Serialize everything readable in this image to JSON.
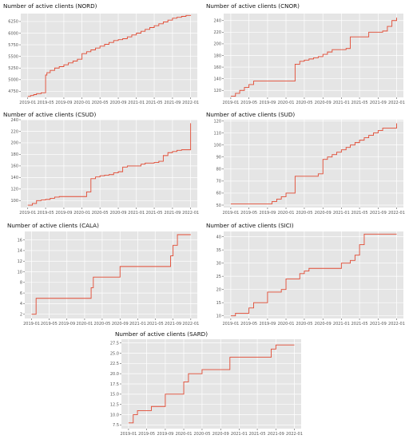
{
  "chart_data": [
    {
      "type": "line",
      "title": "Number of active clients (NORD)",
      "x_ticks": [
        "2019-01",
        "2019-05",
        "2019-09",
        "2020-01",
        "2020-05",
        "2020-09",
        "2021-01",
        "2021-05",
        "2021-09",
        "2022-01"
      ],
      "xlim": [
        "2018-11-15",
        "2022-02-15"
      ],
      "y_ticks": [
        "4750",
        "5000",
        "5250",
        "5500",
        "5750",
        "6000",
        "6250"
      ],
      "ylim": [
        4620,
        6420
      ],
      "grid": true,
      "color": "#e24a33",
      "series": [
        {
          "x": [
            "2019-01-01",
            "2019-01-20",
            "2019-02-10",
            "2019-03-01",
            "2019-04-01",
            "2019-05-01",
            "2019-05-10",
            "2019-06-01",
            "2019-07-01",
            "2019-08-01",
            "2019-09-01",
            "2019-10-01",
            "2019-11-01",
            "2019-12-01",
            "2020-01-01",
            "2020-02-01",
            "2020-03-01",
            "2020-04-01",
            "2020-05-01",
            "2020-06-01",
            "2020-07-01",
            "2020-08-01",
            "2020-09-01",
            "2020-10-01",
            "2020-11-01",
            "2020-12-01",
            "2021-01-01",
            "2021-02-01",
            "2021-03-01",
            "2021-04-01",
            "2021-05-01",
            "2021-06-01",
            "2021-07-01",
            "2021-08-01",
            "2021-09-01",
            "2021-10-01",
            "2021-11-01",
            "2021-12-01",
            "2022-01-01"
          ],
          "y": [
            4640,
            4660,
            4680,
            4700,
            4720,
            5100,
            5150,
            5200,
            5250,
            5280,
            5320,
            5360,
            5400,
            5440,
            5560,
            5600,
            5640,
            5680,
            5720,
            5760,
            5800,
            5840,
            5860,
            5880,
            5920,
            5960,
            6000,
            6040,
            6080,
            6120,
            6160,
            6200,
            6240,
            6280,
            6320,
            6340,
            6360,
            6380,
            6390
          ]
        }
      ]
    },
    {
      "type": "line",
      "title": "Number of active clients (CNOR)",
      "x_ticks": [
        "2019-01",
        "2019-05",
        "2019-09",
        "2020-01",
        "2020-05",
        "2020-09",
        "2021-01",
        "2021-05",
        "2021-09",
        "2022-01"
      ],
      "xlim": [
        "2018-11-15",
        "2022-02-15"
      ],
      "y_ticks": [
        "120",
        "140",
        "160",
        "180",
        "200",
        "220",
        "240"
      ],
      "ylim": [
        108,
        252
      ],
      "grid": true,
      "color": "#e24a33",
      "series": [
        {
          "x": [
            "2019-01-01",
            "2019-02-01",
            "2019-03-01",
            "2019-04-01",
            "2019-05-01",
            "2019-06-01",
            "2019-07-01",
            "2019-08-01",
            "2019-09-01",
            "2019-10-01",
            "2019-11-01",
            "2019-12-01",
            "2020-01-01",
            "2020-02-01",
            "2020-03-01",
            "2020-04-01",
            "2020-05-01",
            "2020-06-01",
            "2020-07-01",
            "2020-08-01",
            "2020-09-01",
            "2020-10-01",
            "2020-11-01",
            "2020-12-01",
            "2021-01-01",
            "2021-02-01",
            "2021-03-01",
            "2021-04-01",
            "2021-05-01",
            "2021-06-01",
            "2021-07-01",
            "2021-08-01",
            "2021-09-01",
            "2021-10-01",
            "2021-11-01",
            "2021-12-01",
            "2022-01-01"
          ],
          "y": [
            110,
            115,
            120,
            125,
            130,
            136,
            136,
            136,
            136,
            136,
            136,
            136,
            136,
            136,
            165,
            170,
            172,
            174,
            176,
            178,
            182,
            186,
            190,
            190,
            190,
            192,
            212,
            212,
            212,
            212,
            220,
            220,
            220,
            222,
            230,
            240,
            245
          ]
        }
      ]
    },
    {
      "type": "line",
      "title": "Number of active clients (CSUD)",
      "x_ticks": [
        "2019-01",
        "2019-05",
        "2019-09",
        "2020-01",
        "2020-05",
        "2020-09",
        "2021-01",
        "2021-05",
        "2021-09",
        "2022-01"
      ],
      "xlim": [
        "2018-11-15",
        "2022-02-15"
      ],
      "y_ticks": [
        "100",
        "120",
        "140",
        "160",
        "180",
        "200",
        "220",
        "240"
      ],
      "ylim": [
        88,
        240
      ],
      "grid": true,
      "color": "#e24a33",
      "series": [
        {
          "x": [
            "2019-01-01",
            "2019-02-01",
            "2019-03-01",
            "2019-04-01",
            "2019-05-01",
            "2019-06-01",
            "2019-07-01",
            "2019-08-01",
            "2019-09-01",
            "2019-10-01",
            "2019-11-01",
            "2019-12-01",
            "2020-01-01",
            "2020-02-01",
            "2020-03-01",
            "2020-04-01",
            "2020-05-01",
            "2020-06-01",
            "2020-07-01",
            "2020-08-01",
            "2020-09-01",
            "2020-10-01",
            "2020-11-01",
            "2020-12-01",
            "2021-01-01",
            "2021-02-01",
            "2021-03-01",
            "2021-04-01",
            "2021-05-01",
            "2021-06-01",
            "2021-07-01",
            "2021-08-01",
            "2021-09-01",
            "2021-10-01",
            "2021-11-01",
            "2021-12-01",
            "2022-01-01"
          ],
          "y": [
            92,
            95,
            100,
            101,
            102,
            104,
            106,
            107,
            107,
            107,
            107,
            107,
            107,
            115,
            138,
            141,
            143,
            144,
            145,
            148,
            150,
            158,
            160,
            160,
            160,
            163,
            165,
            165,
            166,
            168,
            178,
            183,
            185,
            187,
            188,
            188,
            234
          ]
        }
      ]
    },
    {
      "type": "line",
      "title": "Number of active clients (SUD)",
      "x_ticks": [
        "2019-01",
        "2019-05",
        "2019-09",
        "2020-01",
        "2020-05",
        "2020-09",
        "2021-01",
        "2021-05",
        "2021-09",
        "2022-01"
      ],
      "xlim": [
        "2018-11-15",
        "2022-02-15"
      ],
      "y_ticks": [
        "50",
        "60",
        "70",
        "80",
        "90",
        "100",
        "110",
        "120"
      ],
      "ylim": [
        48,
        121
      ],
      "grid": true,
      "color": "#e24a33",
      "series": [
        {
          "x": [
            "2019-01-01",
            "2019-02-01",
            "2019-03-01",
            "2019-04-01",
            "2019-05-01",
            "2019-06-01",
            "2019-07-01",
            "2019-08-01",
            "2019-09-01",
            "2019-10-01",
            "2019-11-01",
            "2019-12-01",
            "2020-01-01",
            "2020-02-01",
            "2020-03-01",
            "2020-04-01",
            "2020-05-01",
            "2020-06-01",
            "2020-07-01",
            "2020-08-01",
            "2020-09-01",
            "2020-10-01",
            "2020-11-01",
            "2020-12-01",
            "2021-01-01",
            "2021-02-01",
            "2021-03-01",
            "2021-04-01",
            "2021-05-01",
            "2021-06-01",
            "2021-07-01",
            "2021-08-01",
            "2021-09-01",
            "2021-10-01",
            "2021-11-01",
            "2021-12-01",
            "2022-01-01"
          ],
          "y": [
            51,
            51,
            51,
            51,
            51,
            51,
            51,
            51,
            51,
            53,
            55,
            57,
            60,
            60,
            74,
            74,
            74,
            74,
            74,
            76,
            88,
            90,
            92,
            94,
            96,
            98,
            100,
            102,
            104,
            106,
            108,
            110,
            112,
            114,
            114,
            114,
            118
          ]
        }
      ]
    },
    {
      "type": "line",
      "title": "Number of active clients (CALA)",
      "x_ticks": [
        "2019-01",
        "2019-05",
        "2019-09",
        "2020-01",
        "2020-05",
        "2020-09",
        "2021-01",
        "2021-05",
        "2021-09",
        "2022-01"
      ],
      "xlim": [
        "2018-11-15",
        "2022-02-15"
      ],
      "y_ticks": [
        "2",
        "4",
        "6",
        "8",
        "10",
        "12",
        "14",
        "16"
      ],
      "ylim": [
        1.2,
        17.6
      ],
      "grid": true,
      "color": "#e24a33",
      "series": [
        {
          "x": [
            "2019-01-01",
            "2019-02-01",
            "2020-01-01",
            "2020-02-15",
            "2020-03-01",
            "2020-09-01",
            "2021-07-15",
            "2021-08-15",
            "2021-09-01",
            "2021-10-01",
            "2022-01-01"
          ],
          "y": [
            2,
            5,
            5,
            7,
            9,
            11,
            11,
            13,
            15,
            17,
            17
          ]
        }
      ]
    },
    {
      "type": "line",
      "title": "Number of active clients (SICI)",
      "x_ticks": [
        "2019-01",
        "2019-05",
        "2019-09",
        "2020-01",
        "2020-05",
        "2020-09",
        "2021-01",
        "2021-05",
        "2021-09",
        "2022-01"
      ],
      "xlim": [
        "2018-11-15",
        "2022-02-15"
      ],
      "y_ticks": [
        "10",
        "15",
        "20",
        "25",
        "30",
        "35",
        "40"
      ],
      "ylim": [
        9,
        42
      ],
      "grid": true,
      "color": "#e24a33",
      "series": [
        {
          "x": [
            "2019-01-01",
            "2019-02-01",
            "2019-04-01",
            "2019-05-01",
            "2019-06-01",
            "2019-08-01",
            "2019-09-01",
            "2019-11-01",
            "2019-12-01",
            "2020-01-01",
            "2020-02-01",
            "2020-04-01",
            "2020-05-01",
            "2020-06-01",
            "2020-07-01",
            "2020-08-01",
            "2021-01-01",
            "2021-03-01",
            "2021-04-01",
            "2021-05-01",
            "2021-06-01",
            "2022-01-01"
          ],
          "y": [
            10,
            11,
            11,
            13,
            15,
            15,
            19,
            19,
            20,
            24,
            24,
            26,
            27,
            28,
            28,
            28,
            30,
            31,
            33,
            37,
            41,
            41
          ]
        }
      ]
    },
    {
      "type": "line",
      "title": "Number of active clients (SARD)",
      "x_ticks": [
        "2019-01",
        "2019-05",
        "2019-09",
        "2020-01",
        "2020-05",
        "2020-09",
        "2021-01",
        "2021-05",
        "2021-09",
        "2022-01"
      ],
      "xlim": [
        "2018-11-15",
        "2022-02-15"
      ],
      "y_ticks": [
        "7.5",
        "10.0",
        "12.5",
        "15.0",
        "17.5",
        "20.0",
        "22.5",
        "25.0",
        "27.5"
      ],
      "ylim": [
        6.6,
        28.4
      ],
      "grid": true,
      "color": "#e24a33",
      "series": [
        {
          "x": [
            "2019-01-01",
            "2019-02-01",
            "2019-03-01",
            "2019-04-01",
            "2019-06-01",
            "2019-07-01",
            "2019-09-01",
            "2020-01-01",
            "2020-02-01",
            "2020-03-01",
            "2020-05-01",
            "2020-11-01",
            "2021-08-01",
            "2021-09-01",
            "2022-01-01"
          ],
          "y": [
            8,
            10,
            11,
            11,
            12,
            12,
            15,
            18,
            20,
            20,
            21,
            24,
            26,
            27,
            27
          ]
        }
      ]
    }
  ]
}
